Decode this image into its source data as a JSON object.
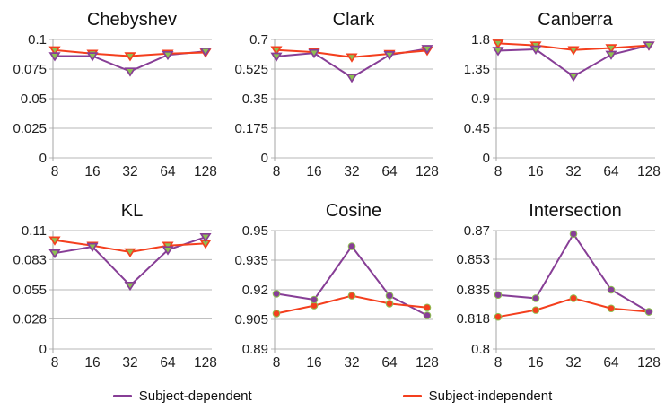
{
  "page": {
    "background": "#ffffff",
    "text_color": "#1f1f1f"
  },
  "style": {
    "grid_color": "#b7b7b7",
    "axis_color": "#a6a6a6",
    "marker_fill_green": "#8dc152",
    "dependent_color": "#873e96",
    "independent_color": "#f43f1e"
  },
  "legend": {
    "position": "bottom",
    "items": [
      {
        "label": "Subject-dependent",
        "color": "#873e96"
      },
      {
        "label": "Subject-independent",
        "color": "#f43f1e"
      }
    ]
  },
  "chart_data": [
    {
      "type": "line",
      "title": "Chebyshev",
      "x_labels": [
        "8",
        "16",
        "32",
        "64",
        "128"
      ],
      "ylim": [
        0,
        0.1
      ],
      "yticks": [
        0,
        0.025,
        0.05,
        0.075,
        0.1
      ],
      "ytick_labels": [
        "0",
        "0.025",
        "0.05",
        "0.075",
        "0.1"
      ],
      "marker": "triangle-down",
      "grid": true,
      "series": [
        {
          "name": "Subject-dependent",
          "color": "#873e96",
          "values": [
            0.086,
            0.086,
            0.073,
            0.087,
            0.09
          ]
        },
        {
          "name": "Subject-independent",
          "color": "#f43f1e",
          "values": [
            0.091,
            0.088,
            0.086,
            0.088,
            0.089
          ]
        }
      ]
    },
    {
      "type": "line",
      "title": "Clark",
      "x_labels": [
        "8",
        "16",
        "32",
        "64",
        "128"
      ],
      "ylim": [
        0,
        0.7
      ],
      "yticks": [
        0,
        0.175,
        0.35,
        0.525,
        0.7
      ],
      "ytick_labels": [
        "0",
        "0.175",
        "0.35",
        "0.525",
        "0.7"
      ],
      "marker": "triangle-down",
      "grid": true,
      "series": [
        {
          "name": "Subject-dependent",
          "color": "#873e96",
          "values": [
            0.6,
            0.62,
            0.475,
            0.608,
            0.645
          ]
        },
        {
          "name": "Subject-independent",
          "color": "#f43f1e",
          "values": [
            0.638,
            0.625,
            0.595,
            0.615,
            0.634
          ]
        }
      ]
    },
    {
      "type": "line",
      "title": "Canberra",
      "x_labels": [
        "8",
        "16",
        "32",
        "64",
        "128"
      ],
      "ylim": [
        0,
        1.8
      ],
      "yticks": [
        0,
        0.45,
        0.9,
        1.35,
        1.8
      ],
      "ytick_labels": [
        "0",
        "0.45",
        "0.9",
        "1.35",
        "1.8"
      ],
      "marker": "triangle-down",
      "grid": true,
      "series": [
        {
          "name": "Subject-dependent",
          "color": "#873e96",
          "values": [
            1.63,
            1.65,
            1.24,
            1.57,
            1.71
          ]
        },
        {
          "name": "Subject-independent",
          "color": "#f43f1e",
          "values": [
            1.74,
            1.71,
            1.64,
            1.67,
            1.71
          ]
        }
      ]
    },
    {
      "type": "line",
      "title": "KL",
      "x_labels": [
        "8",
        "16",
        "32",
        "64",
        "128"
      ],
      "ylim": [
        0,
        0.11
      ],
      "yticks": [
        0,
        0.028,
        0.055,
        0.083,
        0.11
      ],
      "ytick_labels": [
        "0",
        "0.028",
        "0.055",
        "0.083",
        "0.11"
      ],
      "marker": "triangle-down",
      "grid": true,
      "series": [
        {
          "name": "Subject-dependent",
          "color": "#873e96",
          "values": [
            0.089,
            0.095,
            0.059,
            0.092,
            0.104
          ]
        },
        {
          "name": "Subject-independent",
          "color": "#f43f1e",
          "values": [
            0.101,
            0.096,
            0.09,
            0.096,
            0.098
          ]
        }
      ]
    },
    {
      "type": "line",
      "title": "Cosine",
      "x_labels": [
        "8",
        "16",
        "32",
        "64",
        "128"
      ],
      "ylim": [
        0.89,
        0.95
      ],
      "yticks": [
        0.89,
        0.905,
        0.92,
        0.935,
        0.95
      ],
      "ytick_labels": [
        "0.89",
        "0.905",
        "0.92",
        "0.935",
        "0.95"
      ],
      "marker": "circle",
      "grid": true,
      "series": [
        {
          "name": "Subject-dependent",
          "color": "#873e96",
          "values": [
            0.918,
            0.915,
            0.942,
            0.917,
            0.907
          ]
        },
        {
          "name": "Subject-independent",
          "color": "#f43f1e",
          "values": [
            0.908,
            0.912,
            0.917,
            0.913,
            0.911
          ]
        }
      ]
    },
    {
      "type": "line",
      "title": "Intersection",
      "x_labels": [
        "8",
        "16",
        "32",
        "64",
        "128"
      ],
      "ylim": [
        0.8,
        0.87
      ],
      "yticks": [
        0.8,
        0.818,
        0.835,
        0.853,
        0.87
      ],
      "ytick_labels": [
        "0.8",
        "0.818",
        "0.835",
        "0.853",
        "0.87"
      ],
      "marker": "circle",
      "grid": true,
      "series": [
        {
          "name": "Subject-dependent",
          "color": "#873e96",
          "values": [
            0.832,
            0.83,
            0.868,
            0.835,
            0.822
          ]
        },
        {
          "name": "Subject-independent",
          "color": "#f43f1e",
          "values": [
            0.819,
            0.823,
            0.83,
            0.824,
            0.822
          ]
        }
      ]
    }
  ]
}
